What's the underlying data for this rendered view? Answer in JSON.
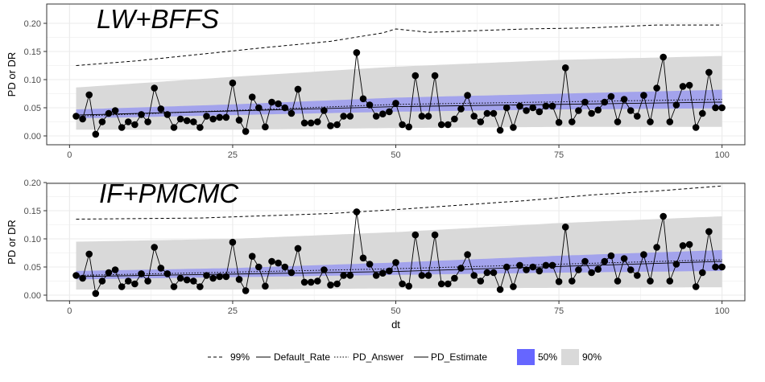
{
  "chart_data": {
    "type": "line",
    "x_axis": {
      "label": "dt",
      "ticks": [
        0,
        25,
        50,
        75,
        100
      ],
      "range": [
        -3.5,
        103.5
      ]
    },
    "y_axis": {
      "label": "PD or DR",
      "ticks": [
        0.0,
        0.05,
        0.1,
        0.15,
        0.2
      ],
      "tick_labels": [
        "0.00",
        "0.05",
        "0.10",
        "0.15",
        "0.20"
      ]
    },
    "grid": true,
    "legend": {
      "position": "bottom",
      "lines": [
        {
          "name": "99%",
          "style": "dashed"
        },
        {
          "name": "Default_Rate",
          "style": "solid-points"
        },
        {
          "name": "PD_Answer",
          "style": "dotted"
        },
        {
          "name": "PD_Estimate",
          "style": "solid"
        }
      ],
      "fills": [
        {
          "name": "50%",
          "color": "#6666ff"
        },
        {
          "name": "90%",
          "color": "#d9d9d9"
        }
      ]
    },
    "colors": {
      "band50": "#9999ee",
      "band90": "#d9d9d9",
      "line": "#000000"
    },
    "default_rate": [
      0.035,
      0.03,
      0.073,
      0.003,
      0.025,
      0.04,
      0.045,
      0.015,
      0.025,
      0.02,
      0.038,
      0.025,
      0.085,
      0.048,
      0.038,
      0.015,
      0.03,
      0.027,
      0.025,
      0.015,
      0.035,
      0.03,
      0.033,
      0.033,
      0.094,
      0.028,
      0.008,
      0.069,
      0.05,
      0.016,
      0.06,
      0.057,
      0.05,
      0.04,
      0.083,
      0.023,
      0.023,
      0.025,
      0.045,
      0.018,
      0.02,
      0.035,
      0.035,
      0.148,
      0.066,
      0.055,
      0.035,
      0.039,
      0.043,
      0.058,
      0.02,
      0.016,
      0.107,
      0.035,
      0.035,
      0.107,
      0.02,
      0.02,
      0.03,
      0.048,
      0.072,
      0.035,
      0.025,
      0.04,
      0.04,
      0.01,
      0.05,
      0.015,
      0.053,
      0.045,
      0.05,
      0.043,
      0.053,
      0.053,
      0.024,
      0.121,
      0.025,
      0.045,
      0.06,
      0.04,
      0.046,
      0.06,
      0.07,
      0.025,
      0.065,
      0.045,
      0.035,
      0.072,
      0.025,
      0.085,
      0.14,
      0.025,
      0.055,
      0.088,
      0.09,
      0.015,
      0.04,
      0.113,
      0.05,
      0.05
    ],
    "panels": [
      {
        "label": "LW+BFFS",
        "pct99": [
          [
            1,
            0.125
          ],
          [
            10,
            0.133
          ],
          [
            20,
            0.145
          ],
          [
            30,
            0.157
          ],
          [
            40,
            0.168
          ],
          [
            48,
            0.183
          ],
          [
            50,
            0.19
          ],
          [
            55,
            0.184
          ],
          [
            60,
            0.186
          ],
          [
            70,
            0.19
          ],
          [
            80,
            0.192
          ],
          [
            90,
            0.197
          ],
          [
            100,
            0.197
          ]
        ],
        "pd_answer": [
          [
            1,
            0.035
          ],
          [
            50,
            0.056
          ],
          [
            100,
            0.065
          ]
        ],
        "pd_estimate": [
          [
            1,
            0.037
          ],
          [
            50,
            0.052
          ],
          [
            100,
            0.06
          ]
        ],
        "band50": [
          [
            1,
            0.031,
            0.047
          ],
          [
            25,
            0.037,
            0.056
          ],
          [
            50,
            0.043,
            0.068
          ],
          [
            75,
            0.047,
            0.075
          ],
          [
            100,
            0.049,
            0.082
          ]
        ],
        "band90": [
          [
            1,
            0.011,
            0.086
          ],
          [
            25,
            0.011,
            0.105
          ],
          [
            50,
            0.014,
            0.123
          ],
          [
            75,
            0.016,
            0.135
          ],
          [
            100,
            0.016,
            0.142
          ]
        ]
      },
      {
        "label": "IF+PMCMC",
        "pct99": [
          [
            1,
            0.135
          ],
          [
            20,
            0.137
          ],
          [
            40,
            0.145
          ],
          [
            50,
            0.152
          ],
          [
            60,
            0.16
          ],
          [
            70,
            0.168
          ],
          [
            80,
            0.178
          ],
          [
            90,
            0.185
          ],
          [
            100,
            0.194
          ]
        ],
        "pd_answer": [
          [
            1,
            0.035
          ],
          [
            50,
            0.047
          ],
          [
            100,
            0.063
          ]
        ],
        "pd_estimate": [
          [
            1,
            0.033
          ],
          [
            50,
            0.042
          ],
          [
            100,
            0.06
          ]
        ],
        "band50": [
          [
            1,
            0.028,
            0.043
          ],
          [
            25,
            0.032,
            0.048
          ],
          [
            50,
            0.036,
            0.058
          ],
          [
            75,
            0.04,
            0.07
          ],
          [
            100,
            0.043,
            0.08
          ]
        ],
        "band90": [
          [
            1,
            0.01,
            0.095
          ],
          [
            25,
            0.01,
            0.1
          ],
          [
            50,
            0.012,
            0.112
          ],
          [
            75,
            0.013,
            0.128
          ],
          [
            100,
            0.014,
            0.14
          ]
        ]
      }
    ]
  }
}
